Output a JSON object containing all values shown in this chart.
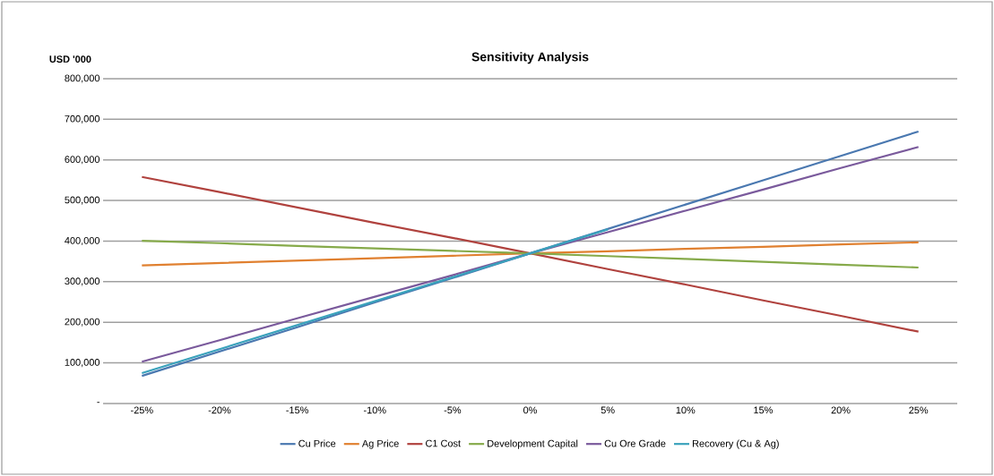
{
  "chart_data": {
    "type": "line",
    "title": "Sensitivity Analysis",
    "ylabel": "USD '000",
    "categories": [
      "-25%",
      "-20%",
      "-15%",
      "-10%",
      "-5%",
      "0%",
      "5%",
      "10%",
      "15%",
      "20%",
      "25%"
    ],
    "series": [
      {
        "name": "Cu Price",
        "color": "#4a78b0",
        "values": [
          68000,
          128000,
          188000,
          249000,
          309000,
          370000,
          430000,
          490000,
          550000,
          610000,
          670000
        ]
      },
      {
        "name": "Ag Price",
        "color": "#e08030",
        "values": [
          340000,
          346000,
          352000,
          358000,
          364000,
          370000,
          375000,
          381000,
          386000,
          392000,
          397000
        ]
      },
      {
        "name": "C1 Cost",
        "color": "#b0423e",
        "values": [
          558000,
          521000,
          483000,
          445000,
          408000,
          370000,
          331000,
          293000,
          254000,
          216000,
          177000
        ]
      },
      {
        "name": "Development Capital",
        "color": "#86aa4a",
        "values": [
          401000,
          395000,
          388000,
          382000,
          376000,
          370000,
          363000,
          356000,
          349000,
          342000,
          335000
        ]
      },
      {
        "name": "Cu Ore Grade",
        "color": "#7a5a9c",
        "values": [
          103000,
          156000,
          210000,
          263000,
          316000,
          370000,
          422000,
          475000,
          527000,
          580000,
          632000
        ]
      },
      {
        "name": "Recovery (Cu & Ag)",
        "color": "#3aa2bc",
        "values": [
          75000,
          134000,
          193000,
          252000,
          311000,
          370000,
          429000,
          null,
          null,
          null,
          null
        ]
      }
    ],
    "ylim": [
      0,
      800000
    ],
    "yticks": [
      {
        "value": 0,
        "label": "-"
      },
      {
        "value": 100000,
        "label": "100,000"
      },
      {
        "value": 200000,
        "label": "200,000"
      },
      {
        "value": 300000,
        "label": "300,000"
      },
      {
        "value": 400000,
        "label": "400,000"
      },
      {
        "value": 500000,
        "label": "500,000"
      },
      {
        "value": 600000,
        "label": "600,000"
      },
      {
        "value": 700000,
        "label": "700,000"
      },
      {
        "value": 800000,
        "label": "800,000"
      }
    ],
    "grid": "y",
    "legend": "bottom",
    "marker": "none",
    "line_style": "solid"
  }
}
